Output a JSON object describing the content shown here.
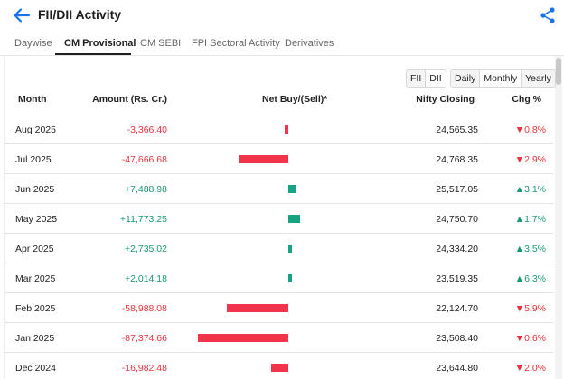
{
  "header": {
    "title": "FII/DII Activity",
    "back_icon": "arrow-left-icon",
    "share_icon": "share-icon",
    "accent": "#1a73e8"
  },
  "tabs": [
    {
      "label": "Daywise",
      "active": false
    },
    {
      "label": "CM Provisional",
      "active": true
    },
    {
      "label": "CM SEBI",
      "active": false
    },
    {
      "label": "FPI Sectoral Activity",
      "active": false
    },
    {
      "label": "Derivatives",
      "active": false
    }
  ],
  "toggles": {
    "investor": [
      {
        "label": "FII",
        "selected": false
      },
      {
        "label": "DII",
        "selected": true
      }
    ],
    "period": [
      {
        "label": "Daily",
        "selected": false
      },
      {
        "label": "Monthly",
        "selected": true
      },
      {
        "label": "Yearly",
        "selected": false
      }
    ]
  },
  "table": {
    "columns": {
      "month": "Month",
      "amount": "Amount (Rs. Cr.)",
      "net": "Net Buy/(Sell)*",
      "nifty": "Nifty Closing",
      "chg": "Chg %"
    },
    "colors": {
      "negative": "#e8333c",
      "positive": "#1a9a6e"
    },
    "rows": [
      {
        "month": "Aug 2025",
        "amount": "-3,366.40",
        "amount_value": -3366.4,
        "nifty": "24,565.35",
        "chg": "▼0.8%",
        "chg_dir": "down"
      },
      {
        "month": "Jul 2025",
        "amount": "-47,666.68",
        "amount_value": -47666.68,
        "nifty": "24,768.35",
        "chg": "▼2.9%",
        "chg_dir": "down"
      },
      {
        "month": "Jun 2025",
        "amount": "+7,488.98",
        "amount_value": 7488.98,
        "nifty": "25,517.05",
        "chg": "▲3.1%",
        "chg_dir": "up"
      },
      {
        "month": "May 2025",
        "amount": "+11,773.25",
        "amount_value": 11773.25,
        "nifty": "24,750.70",
        "chg": "▲1.7%",
        "chg_dir": "up"
      },
      {
        "month": "Apr 2025",
        "amount": "+2,735.02",
        "amount_value": 2735.02,
        "nifty": "24,334.20",
        "chg": "▲3.5%",
        "chg_dir": "up"
      },
      {
        "month": "Mar 2025",
        "amount": "+2,014.18",
        "amount_value": 2014.18,
        "nifty": "23,519.35",
        "chg": "▲6.3%",
        "chg_dir": "up"
      },
      {
        "month": "Feb 2025",
        "amount": "-58,988.08",
        "amount_value": -58988.08,
        "nifty": "22,124.70",
        "chg": "▼5.9%",
        "chg_dir": "down"
      },
      {
        "month": "Jan 2025",
        "amount": "-87,374.66",
        "amount_value": -87374.66,
        "nifty": "23,508.40",
        "chg": "▼0.6%",
        "chg_dir": "down"
      },
      {
        "month": "Dec 2024",
        "amount": "-16,982.48",
        "amount_value": -16982.48,
        "nifty": "23,644.80",
        "chg": "▼2.0%",
        "chg_dir": "down"
      }
    ]
  }
}
